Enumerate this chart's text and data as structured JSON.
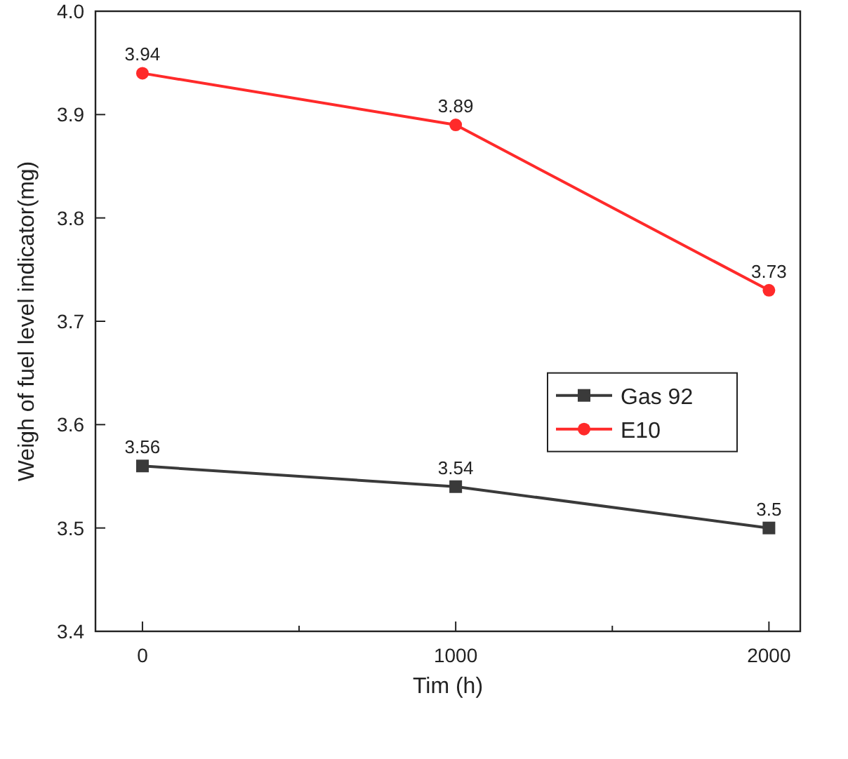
{
  "chart_data": {
    "type": "line",
    "xlabel": "Tim (h)",
    "ylabel": "Weigh of fuel level indicator(mg)",
    "x": [
      0,
      1000,
      2000
    ],
    "series": [
      {
        "name": "Gas 92",
        "color": "#3a3a3a",
        "marker": "square",
        "values": [
          3.56,
          3.54,
          3.5
        ]
      },
      {
        "name": "E10",
        "color": "#ff2a2a",
        "marker": "circle",
        "values": [
          3.94,
          3.89,
          3.73
        ]
      }
    ],
    "xlim": [
      -150,
      2100
    ],
    "xticks": [
      0,
      {
        "value": 500,
        "label": null
      },
      1000,
      {
        "value": 1500,
        "label": null
      },
      2000
    ],
    "ylim": [
      3.4,
      4.0
    ],
    "yticks": [
      {
        "value": 3.4,
        "label": "3.4"
      },
      {
        "value": 3.5,
        "label": "3.5"
      },
      {
        "value": 3.6,
        "label": "3.6"
      },
      {
        "value": 3.7,
        "label": "3.7"
      },
      {
        "value": 3.8,
        "label": "3.8"
      },
      {
        "value": 3.9,
        "label": "3.9"
      },
      {
        "value": 4.0,
        "label": "4.0"
      }
    ],
    "grid": false,
    "legend": "right",
    "data_labels": true,
    "line_style": "solid"
  }
}
